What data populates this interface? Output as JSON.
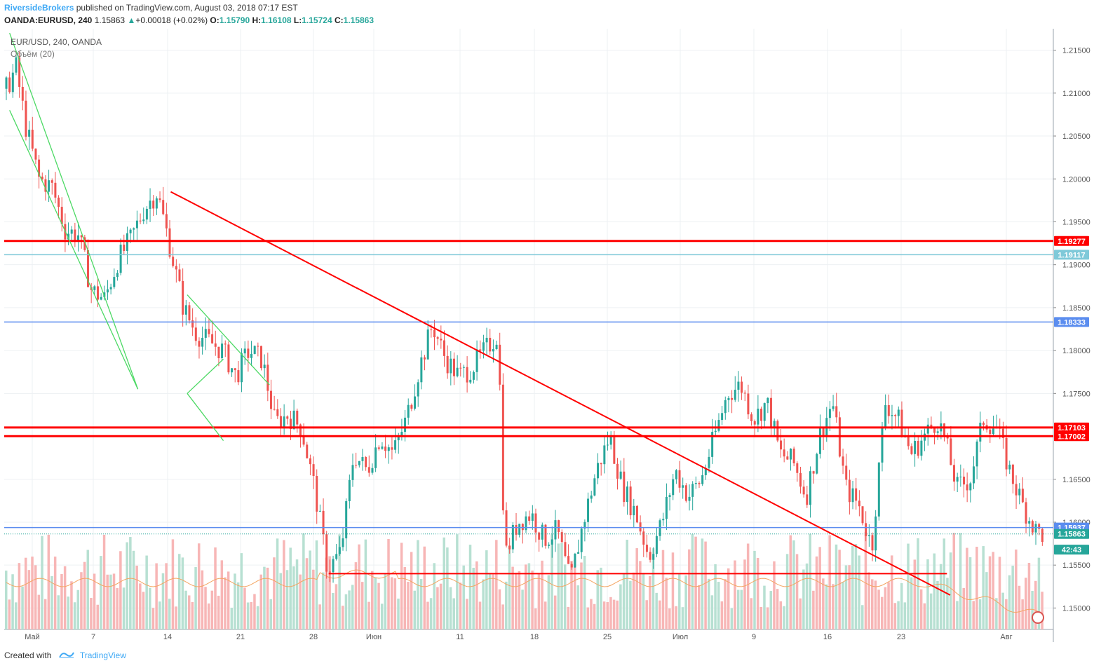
{
  "header": {
    "publisher": "RiversideBrokers",
    "published_text": "published on TradingView.com, August 03, 2018 07:17 EST",
    "symbol": "OANDA:EURUSD, 240",
    "last": "1.15863",
    "change_arrow": "▲",
    "change": "+0.00018 (+0.02%)",
    "o_label": "O:",
    "o_value": "1.15790",
    "h_label": "H:",
    "h_value": "1.16108",
    "l_label": "L:",
    "l_value": "1.15724",
    "c_label": "C:",
    "c_value": "1.15863"
  },
  "legend": {
    "instrument": "EUR/USD, 240, OANDA",
    "volume": "Объём (20)"
  },
  "footer": {
    "created_with": "Created with",
    "brand": "TradingView"
  },
  "colors": {
    "up": "#26a69a",
    "down": "#ef5350",
    "red_line": "#ff0000",
    "blue_line": "#5b8def",
    "green_line": "#4cd964",
    "ma_line": "#f4a460",
    "vol_up": "#b7e0d2",
    "vol_down": "#f7b6b6"
  },
  "chart_data": {
    "type": "candlestick",
    "timeframe": "240",
    "instrument": "EUR/USD",
    "ylim": [
      1.1475,
      1.2175
    ],
    "y_ticks": [
      "1.21500",
      "1.21000",
      "1.20500",
      "1.20000",
      "1.19500",
      "1.19000",
      "1.18500",
      "1.18000",
      "1.17500",
      "1.16500",
      "1.16000",
      "1.15500",
      "1.15000"
    ],
    "x_ticks": [
      "Май",
      "7",
      "14",
      "21",
      "28",
      "Июн",
      "11",
      "18",
      "25",
      "Июл",
      "9",
      "16",
      "23",
      "Авг"
    ],
    "price_tags": [
      {
        "label": "1.19277",
        "value": 1.19277,
        "color": "#ff0000"
      },
      {
        "label": "1.19117",
        "value": 1.19117,
        "color": "#7fc9d9"
      },
      {
        "label": "1.18333",
        "value": 1.18333,
        "color": "#5b8def"
      },
      {
        "label": "1.17103",
        "value": 1.17103,
        "color": "#ff0000"
      },
      {
        "label": "1.17002",
        "value": 1.17002,
        "color": "#ff0000"
      },
      {
        "label": "1.15937",
        "value": 1.15937,
        "color": "#5b8def"
      },
      {
        "label": "1.15863",
        "value": 1.15863,
        "color": "#26a69a"
      },
      {
        "label": "42:43",
        "value": 1.1568,
        "color": "#26a69a"
      }
    ],
    "horizontal_lines": [
      {
        "value": 1.19277,
        "color": "#ff0000"
      },
      {
        "value": 1.19117,
        "color": "#7fc9d9"
      },
      {
        "value": 1.18333,
        "color": "#5b8def"
      },
      {
        "value": 1.17103,
        "color": "#ff0000"
      },
      {
        "value": 1.17002,
        "color": "#ff0000"
      },
      {
        "value": 1.15937,
        "color": "#5b8def"
      }
    ],
    "close_path": [
      [
        0,
        1.2105
      ],
      [
        3,
        1.213
      ],
      [
        6,
        1.206
      ],
      [
        10,
        1.2
      ],
      [
        14,
        1.199
      ],
      [
        18,
        1.194
      ],
      [
        22,
        1.1935
      ],
      [
        26,
        1.187
      ],
      [
        30,
        1.186
      ],
      [
        34,
        1.1905
      ],
      [
        38,
        1.193
      ],
      [
        42,
        1.1965
      ],
      [
        46,
        1.1985
      ],
      [
        50,
        1.192
      ],
      [
        54,
        1.185
      ],
      [
        58,
        1.182
      ],
      [
        62,
        1.181
      ],
      [
        66,
        1.18
      ],
      [
        70,
        1.177
      ],
      [
        74,
        1.18
      ],
      [
        78,
        1.179
      ],
      [
        82,
        1.1715
      ],
      [
        86,
        1.1725
      ],
      [
        90,
        1.171
      ],
      [
        94,
        1.164
      ],
      [
        98,
        1.1545
      ],
      [
        102,
        1.1565
      ],
      [
        106,
        1.168
      ],
      [
        110,
        1.166
      ],
      [
        114,
        1.17
      ],
      [
        118,
        1.168
      ],
      [
        122,
        1.172
      ],
      [
        126,
        1.178
      ],
      [
        130,
        1.183
      ],
      [
        134,
        1.179
      ],
      [
        138,
        1.177
      ],
      [
        142,
        1.178
      ],
      [
        146,
        1.18
      ],
      [
        150,
        1.182
      ],
      [
        151,
        1.17
      ],
      [
        152,
        1.156
      ],
      [
        156,
        1.16
      ],
      [
        160,
        1.161
      ],
      [
        164,
        1.158
      ],
      [
        168,
        1.159
      ],
      [
        172,
        1.153
      ],
      [
        176,
        1.16
      ],
      [
        180,
        1.166
      ],
      [
        184,
        1.17
      ],
      [
        188,
        1.164
      ],
      [
        192,
        1.161
      ],
      [
        196,
        1.156
      ],
      [
        200,
        1.16
      ],
      [
        204,
        1.166
      ],
      [
        208,
        1.163
      ],
      [
        212,
        1.165
      ],
      [
        216,
        1.17
      ],
      [
        220,
        1.175
      ],
      [
        224,
        1.176
      ],
      [
        228,
        1.172
      ],
      [
        232,
        1.174
      ],
      [
        236,
        1.168
      ],
      [
        240,
        1.167
      ],
      [
        244,
        1.163
      ],
      [
        248,
        1.17
      ],
      [
        252,
        1.174
      ],
      [
        256,
        1.164
      ],
      [
        260,
        1.162
      ],
      [
        264,
        1.157
      ],
      [
        268,
        1.174
      ],
      [
        272,
        1.172
      ],
      [
        276,
        1.168
      ],
      [
        280,
        1.17
      ],
      [
        284,
        1.172
      ],
      [
        286,
        1.17
      ],
      [
        290,
        1.164
      ],
      [
        294,
        1.165
      ],
      [
        298,
        1.172
      ],
      [
        302,
        1.171
      ],
      [
        306,
        1.166
      ],
      [
        310,
        1.162
      ],
      [
        314,
        1.159
      ],
      [
        316,
        1.1586
      ]
    ],
    "green_channel_lines": [
      [
        [
          1,
          1.217
        ],
        [
          40,
          1.1755
        ]
      ],
      [
        [
          1,
          1.208
        ],
        [
          40,
          1.1755
        ]
      ],
      [
        [
          55,
          1.1865
        ],
        [
          80,
          1.176
        ]
      ],
      [
        [
          55,
          1.175
        ],
        [
          66,
          1.179
        ]
      ],
      [
        [
          55,
          1.175
        ],
        [
          66,
          1.1695
        ]
      ]
    ],
    "red_trend_lines": [
      [
        [
          50,
          1.1985
        ],
        [
          287,
          1.1515
        ]
      ],
      [
        [
          98,
          1.154
        ],
        [
          286,
          1.154
        ]
      ]
    ],
    "series": [
      {
        "name": "EUR/USD",
        "values": []
      },
      {
        "name": "Объём (20)",
        "values": []
      }
    ]
  }
}
